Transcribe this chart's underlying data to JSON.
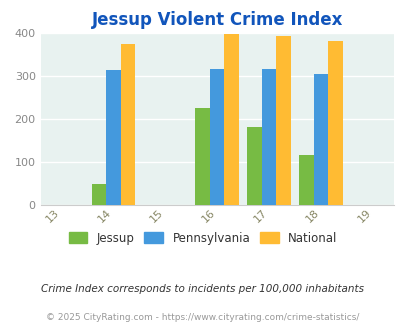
{
  "title": "Jessup Violent Crime Index",
  "all_years": [
    2013,
    2014,
    2015,
    2016,
    2017,
    2018,
    2019
  ],
  "data_years": [
    2014,
    2016,
    2017,
    2018
  ],
  "jessup": [
    47,
    225,
    182,
    115
  ],
  "pennsylvania": [
    313,
    317,
    315,
    305
  ],
  "national": [
    375,
    398,
    393,
    381
  ],
  "colors": {
    "jessup": "#77bb44",
    "pennsylvania": "#4499dd",
    "national": "#ffbb33"
  },
  "ylim": [
    0,
    400
  ],
  "yticks": [
    0,
    100,
    200,
    300,
    400
  ],
  "legend_labels": [
    "Jessup",
    "Pennsylvania",
    "National"
  ],
  "footnote1": "Crime Index corresponds to incidents per 100,000 inhabitants",
  "footnote2": "© 2025 CityRating.com - https://www.cityrating.com/crime-statistics/",
  "bg_color": "#e8f2f0",
  "title_color": "#1155bb",
  "bar_width": 0.28
}
